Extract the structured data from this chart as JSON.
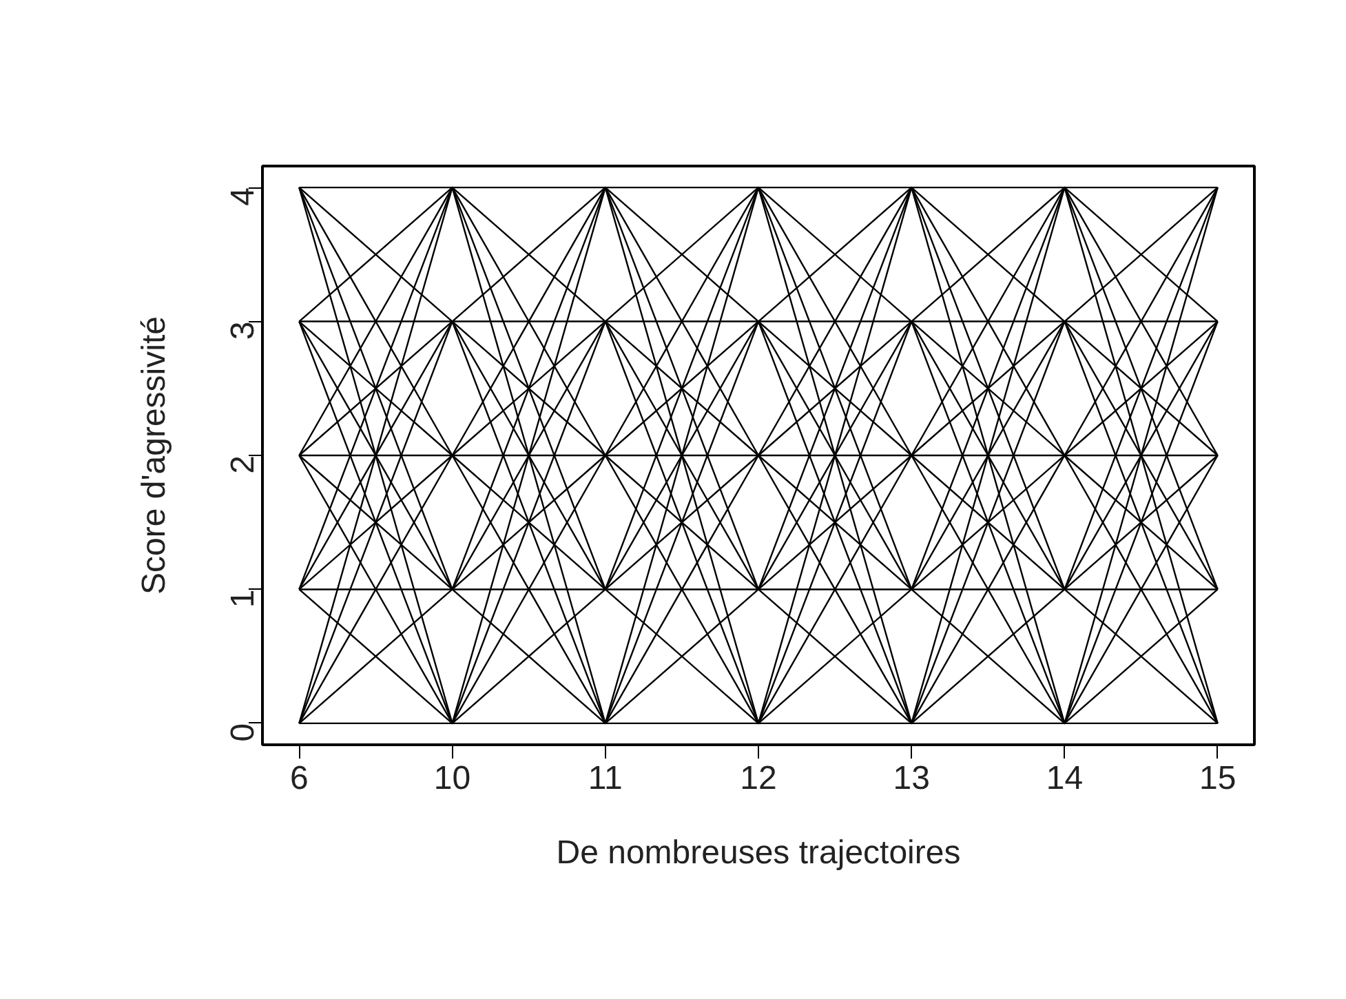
{
  "chart_data": {
    "type": "line",
    "xlabel": "De nombreuses trajectoires",
    "ylabel": "Score d'agressivité",
    "categories": [
      "6",
      "10",
      "11",
      "12",
      "13",
      "14",
      "15"
    ],
    "ylim": [
      -0.16,
      4.16
    ],
    "yticks": [
      0,
      1,
      2,
      3,
      4
    ],
    "grid": false,
    "marker": "none",
    "line_style": "solid",
    "series": [
      {
        "color": "#000000",
        "values": [
          0,
          0,
          0,
          0,
          0,
          0,
          0
        ]
      },
      {
        "color": "#000000",
        "values": [
          0,
          1,
          0,
          1,
          0,
          1,
          0
        ]
      },
      {
        "color": "#000000",
        "values": [
          0,
          2,
          0,
          2,
          0,
          2,
          0
        ]
      },
      {
        "color": "#000000",
        "values": [
          0,
          3,
          0,
          3,
          0,
          3,
          0
        ]
      },
      {
        "color": "#000000",
        "values": [
          0,
          4,
          0,
          4,
          0,
          4,
          0
        ]
      },
      {
        "color": "#000000",
        "values": [
          1,
          0,
          1,
          0,
          1,
          0,
          1
        ]
      },
      {
        "color": "#000000",
        "values": [
          1,
          1,
          1,
          1,
          1,
          1,
          1
        ]
      },
      {
        "color": "#000000",
        "values": [
          1,
          2,
          1,
          2,
          1,
          2,
          1
        ]
      },
      {
        "color": "#000000",
        "values": [
          1,
          3,
          1,
          3,
          1,
          3,
          1
        ]
      },
      {
        "color": "#000000",
        "values": [
          1,
          4,
          1,
          4,
          1,
          4,
          1
        ]
      },
      {
        "color": "#000000",
        "values": [
          2,
          0,
          2,
          0,
          2,
          0,
          2
        ]
      },
      {
        "color": "#000000",
        "values": [
          2,
          1,
          2,
          1,
          2,
          1,
          2
        ]
      },
      {
        "color": "#000000",
        "values": [
          2,
          2,
          2,
          2,
          2,
          2,
          2
        ]
      },
      {
        "color": "#000000",
        "values": [
          2,
          3,
          2,
          3,
          2,
          3,
          2
        ]
      },
      {
        "color": "#000000",
        "values": [
          2,
          4,
          2,
          4,
          2,
          4,
          2
        ]
      },
      {
        "color": "#000000",
        "values": [
          3,
          0,
          3,
          0,
          3,
          0,
          3
        ]
      },
      {
        "color": "#000000",
        "values": [
          3,
          1,
          3,
          1,
          3,
          1,
          3
        ]
      },
      {
        "color": "#000000",
        "values": [
          3,
          2,
          3,
          2,
          3,
          2,
          3
        ]
      },
      {
        "color": "#000000",
        "values": [
          3,
          3,
          3,
          3,
          3,
          3,
          3
        ]
      },
      {
        "color": "#000000",
        "values": [
          3,
          4,
          3,
          4,
          3,
          4,
          3
        ]
      },
      {
        "color": "#000000",
        "values": [
          4,
          0,
          4,
          0,
          4,
          0,
          4
        ]
      },
      {
        "color": "#000000",
        "values": [
          4,
          1,
          4,
          1,
          4,
          1,
          4
        ]
      },
      {
        "color": "#000000",
        "values": [
          4,
          2,
          4,
          2,
          4,
          2,
          4
        ]
      },
      {
        "color": "#000000",
        "values": [
          4,
          3,
          4,
          3,
          4,
          3,
          4
        ]
      },
      {
        "color": "#000000",
        "values": [
          4,
          4,
          4,
          4,
          4,
          4,
          4
        ]
      }
    ]
  }
}
